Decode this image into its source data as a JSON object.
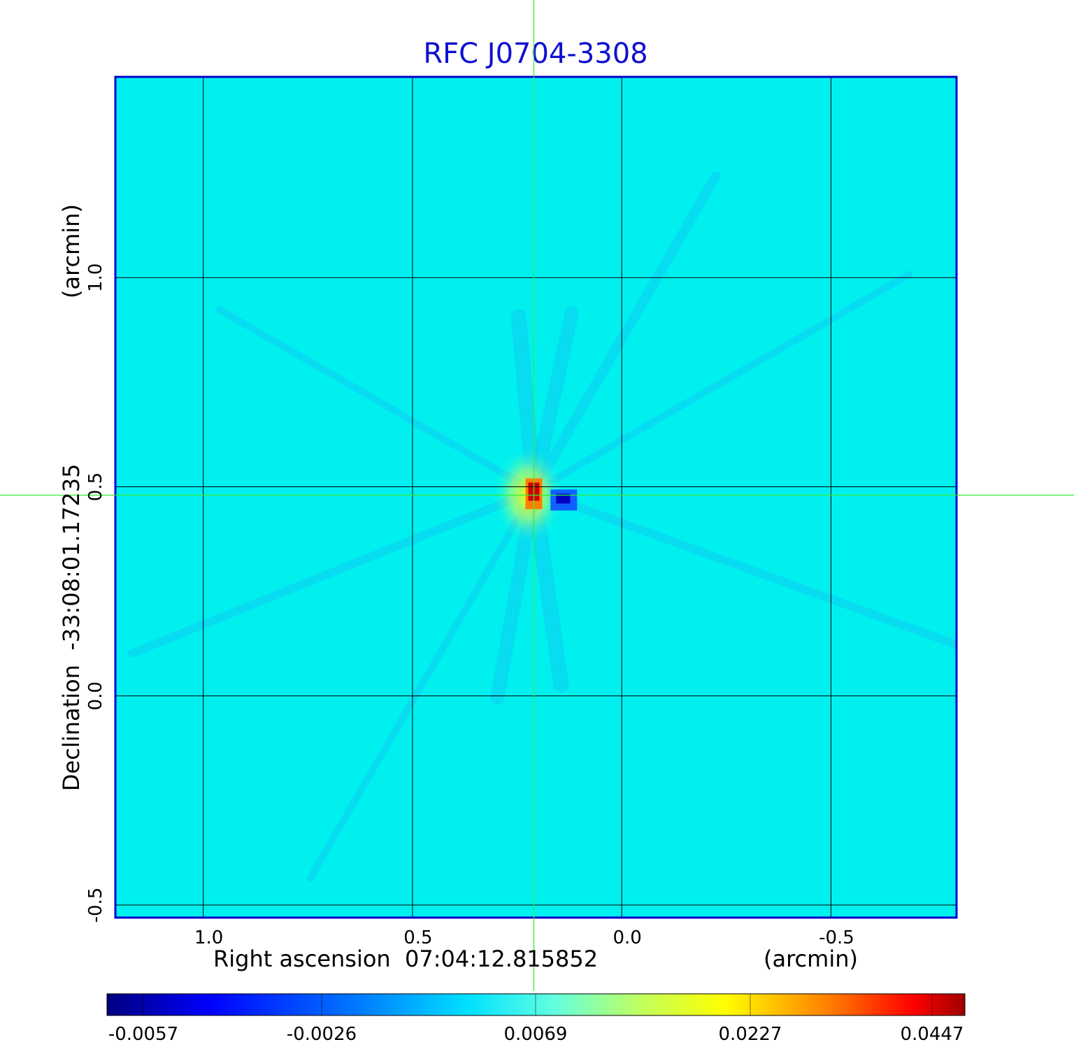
{
  "chart_data": {
    "type": "heatmap",
    "title": "RFC J0704-3308",
    "xlabel": "Right ascension  07:04:12.815852",
    "xlabel_unit": "(arcmin)",
    "ylabel": "Declination  -33:08:01.17235",
    "ylabel_unit": "(arcmin)",
    "x_ticks": [
      "1.0",
      "0.5",
      "0.0",
      "-0.5"
    ],
    "y_ticks": [
      "1.0",
      "0.5",
      "0.0",
      "-0.5"
    ],
    "x_tick_values": [
      1.0,
      0.5,
      0.0,
      -0.5
    ],
    "y_tick_values": [
      1.0,
      0.5,
      0.0,
      -0.5
    ],
    "xlim": [
      1.21,
      -0.8
    ],
    "ylim": [
      -0.53,
      1.48
    ],
    "grid": true,
    "colormap": "jet",
    "colorbar": {
      "ticks": [
        "-0.0057",
        "-0.0026",
        "0.0069",
        "0.0227",
        "0.0447"
      ],
      "min": -0.0057,
      "max": 0.0447
    },
    "background_value": 0.0,
    "crosshair": {
      "x": 0.21,
      "y": 0.48
    },
    "features": [
      {
        "x": 0.21,
        "y": 0.49,
        "value": 0.0447,
        "kind": "peak"
      },
      {
        "x": 0.14,
        "y": 0.47,
        "value": -0.0057,
        "kind": "minimum"
      }
    ],
    "colors": {
      "title": "#1010d0",
      "frame": "#0000c8",
      "crosshair": "#33ee33",
      "grid": "#000000",
      "background": "#00f0f0"
    }
  }
}
